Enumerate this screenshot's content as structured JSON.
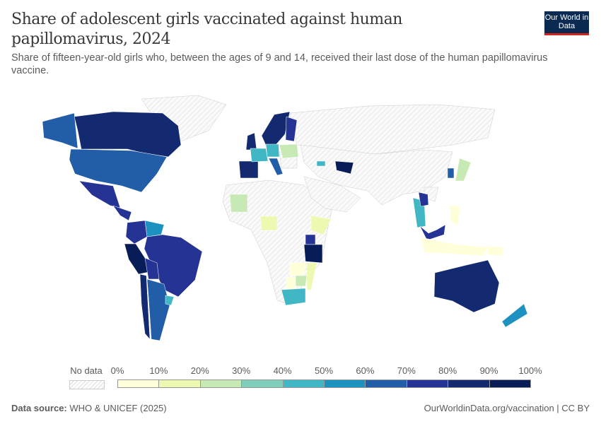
{
  "header": {
    "title": "Share of adolescent girls vaccinated against human papillomavirus, 2024",
    "subtitle": "Share of fifteen-year-old girls who, between the ages of 9 and 14, received their last dose of the human papillomavirus vaccine.",
    "logo_text": "Our World in Data"
  },
  "legend": {
    "no_data_label": "No data",
    "ticks": [
      "0%",
      "10%",
      "20%",
      "30%",
      "40%",
      "50%",
      "60%",
      "70%",
      "80%",
      "90%",
      "100%"
    ],
    "colors": [
      "#ffffd9",
      "#edf8b1",
      "#c7e9b4",
      "#7fcdbb",
      "#41b6c4",
      "#1d91c0",
      "#225ea8",
      "#253494",
      "#142a70",
      "#081d58"
    ],
    "no_data_color": "hatched-grey"
  },
  "map": {
    "unit": "%",
    "values": {
      "canada": 86,
      "alaska": 65,
      "usa": 63,
      "mexico": 75,
      "central-america": 72,
      "colombia": 72,
      "venezuela": 55,
      "brazil": 76,
      "peru": 95,
      "bolivia": 72,
      "argentina": 65,
      "chile": 85,
      "uruguay": 45,
      "scandinavia": 86,
      "finland": 75,
      "uk": 80,
      "iberia": 88,
      "france": 48,
      "germany": 45,
      "italy": 60,
      "eastern-europe": 22,
      "uzbekistan": 95,
      "georgia": 45,
      "mali": 20,
      "nigeria": 18,
      "ethiopia": 15,
      "uganda": 75,
      "tanzania": 95,
      "zambia": 8,
      "zimbabwe": 25,
      "mozambique": 12,
      "botswana": 5,
      "south-africa": 45,
      "japan": 20,
      "korea": 65,
      "thailand": 45,
      "laos": 72,
      "malaysia": 72,
      "indonesia": 5,
      "philippines": 8,
      "png": 5,
      "australia": 85,
      "new-zealand": 55
    }
  },
  "footer": {
    "source_label": "Data source:",
    "source_value": "WHO & UNICEF (2025)",
    "url": "OurWorldinData.org/vaccination | CC BY"
  }
}
